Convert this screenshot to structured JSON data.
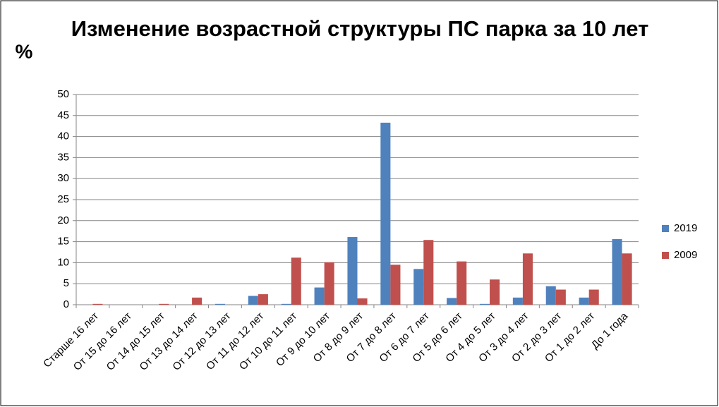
{
  "chart_data": {
    "type": "bar",
    "title": "Изменение возрастной структуры ПС парка за 10 лет",
    "y_label": "%",
    "categories": [
      "Старше 16 лет",
      "От 15 до 16 лет",
      "От 14 до 15 лет",
      "От 13 до 14 лет",
      "От 12 до 13 лет",
      "От 11 до 12 лет",
      "От 10 до 11 лет",
      "От 9 до 10 лет",
      "От 8 до 9 лет",
      "От 7 до 8 лет",
      "От 6 до 7 лет",
      "От 5 до 6 лет",
      "От 4 до 5 лет",
      "От 3 до 4 лет",
      "От 2 до 3 лет",
      "От 1 до 2 лет",
      "До 1 года"
    ],
    "series": [
      {
        "name": "2019",
        "color": "#4f81bd",
        "values": [
          0,
          0,
          0,
          0,
          0.2,
          2.1,
          0.2,
          4.1,
          16.1,
          43.3,
          8.5,
          1.6,
          0.2,
          1.7,
          4.4,
          1.7,
          15.6
        ]
      },
      {
        "name": "2009",
        "color": "#c0504d",
        "values": [
          0.2,
          0,
          0.2,
          1.7,
          0,
          2.5,
          11.2,
          10.1,
          1.5,
          9.5,
          15.4,
          10.3,
          6.0,
          12.2,
          3.6,
          3.6,
          12.2
        ]
      }
    ],
    "ylim": [
      0,
      50
    ],
    "yticks": [
      0,
      5,
      10,
      15,
      20,
      25,
      30,
      35,
      40,
      45,
      50
    ],
    "grid": true,
    "legend": "right"
  }
}
